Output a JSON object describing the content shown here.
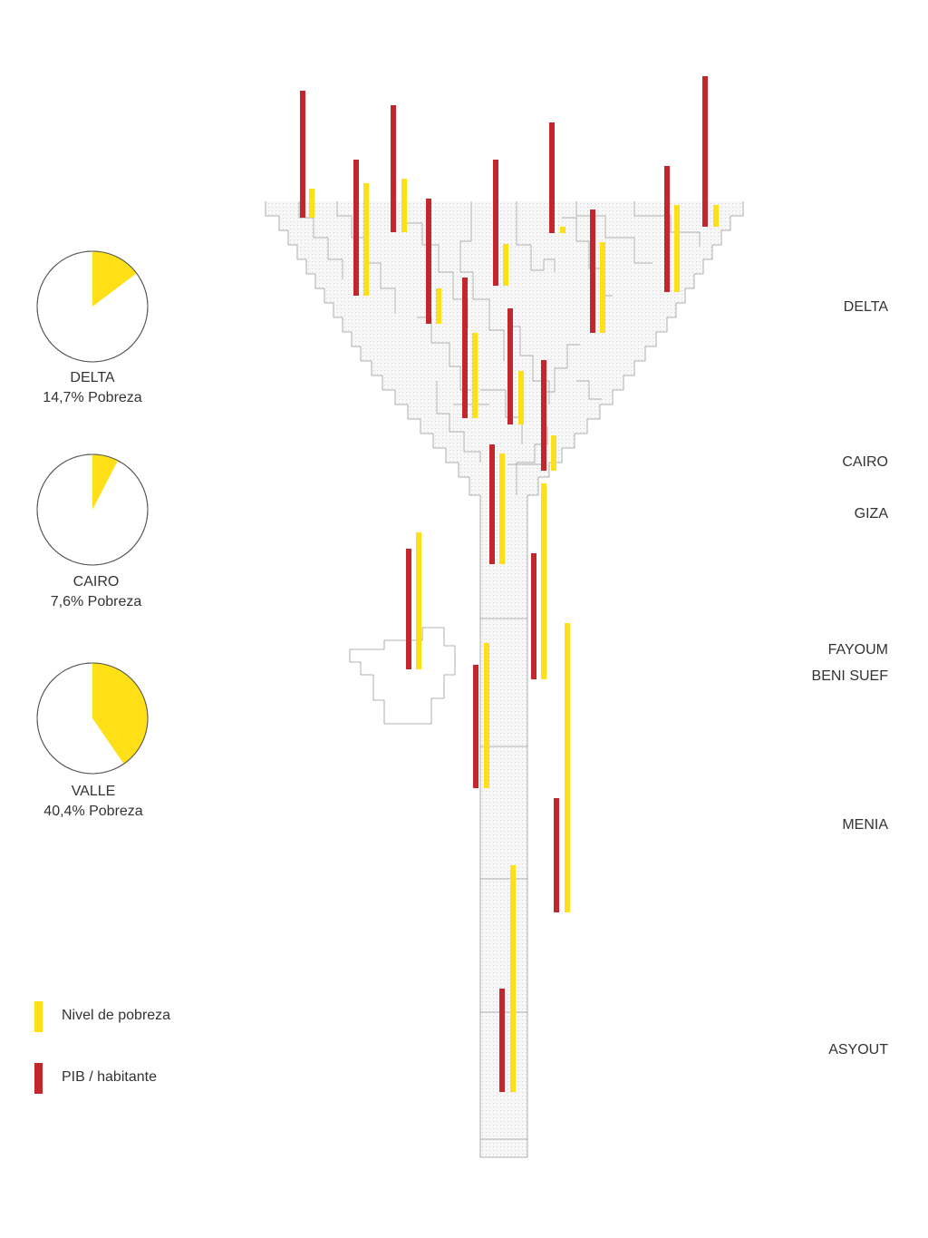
{
  "colors": {
    "poverty": "#FFE016",
    "gdp": "#C1272D",
    "outline": "#9a9a9a",
    "pie_outline": "#555555",
    "pie_bg": "#ffffff"
  },
  "legend": {
    "poverty_label": "Nivel de pobreza",
    "gdp_label": "PIB / habitante"
  },
  "pies": [
    {
      "name": "DELTA",
      "value_text": "14,7% Pobreza",
      "percent": 14.7
    },
    {
      "name": "CAIRO",
      "value_text": "7,6% Pobreza",
      "percent": 7.6
    },
    {
      "name": "VALLE",
      "value_text": "40,4% Pobreza",
      "percent": 40.4
    }
  ],
  "regions": [
    {
      "label": "DELTA"
    },
    {
      "label": "CAIRO"
    },
    {
      "label": "GIZA"
    },
    {
      "label": "FAYOUM"
    },
    {
      "label": "BENI SUEF"
    },
    {
      "label": "MENIA"
    },
    {
      "label": "ASYOUT"
    }
  ],
  "chart_data": {
    "type": "bar",
    "series": [
      {
        "name": "Nivel de pobreza",
        "color_key": "poverty"
      },
      {
        "name": "PIB / habitante",
        "color_key": "gdp"
      }
    ]
  }
}
